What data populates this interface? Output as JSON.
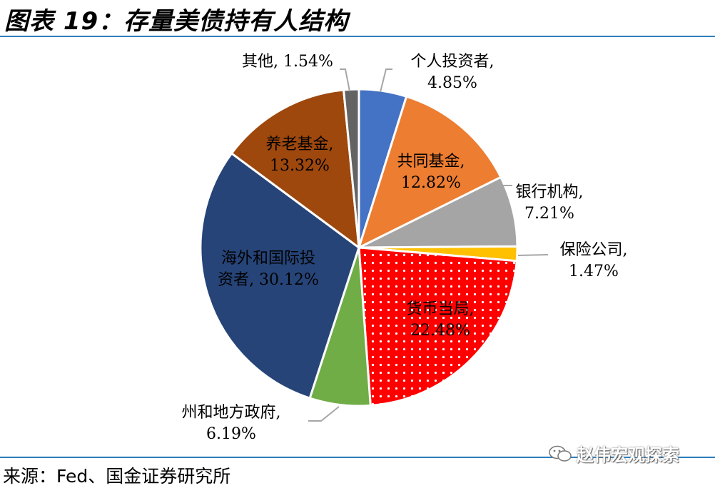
{
  "title": "图表 19：存量美债持有人结构",
  "source": "来源：Fed、国金证券研究所",
  "watermark": "赵伟宏观探索",
  "chart_data": {
    "type": "pie",
    "title": "",
    "series": [
      {
        "name": "个人投资者",
        "value": 4.85,
        "label_lines": [
          "个人投资者,",
          "4.85%"
        ],
        "color": "#4472c4"
      },
      {
        "name": "共同基金",
        "value": 12.82,
        "label_lines": [
          "共同基金,",
          "12.82%"
        ],
        "color": "#ed7d31"
      },
      {
        "name": "银行机构",
        "value": 7.21,
        "label_lines": [
          "银行机构,",
          "7.21%"
        ],
        "color": "#a5a5a5"
      },
      {
        "name": "保险公司",
        "value": 1.47,
        "label_lines": [
          "保险公司,",
          "1.47%"
        ],
        "color": "#ffc000"
      },
      {
        "name": "货币当局",
        "value": 22.48,
        "label_lines": [
          "货币当局,",
          "22.48%"
        ],
        "color": "#ff0000",
        "pattern": "dots"
      },
      {
        "name": "州和地方政府",
        "value": 6.19,
        "label_lines": [
          "州和地方政府,",
          "6.19%"
        ],
        "color": "#70ad47"
      },
      {
        "name": "海外和国际投资者",
        "value": 30.12,
        "label_lines": [
          "海外和国际投",
          "资者, 30.12%"
        ],
        "color": "#264478"
      },
      {
        "name": "养老基金",
        "value": 13.32,
        "label_lines": [
          "养老基金,",
          "13.32%"
        ],
        "color": "#9e480e"
      },
      {
        "name": "其他",
        "value": 1.54,
        "label_lines": [
          "其他, 1.54%"
        ],
        "color": "#636363"
      }
    ]
  }
}
